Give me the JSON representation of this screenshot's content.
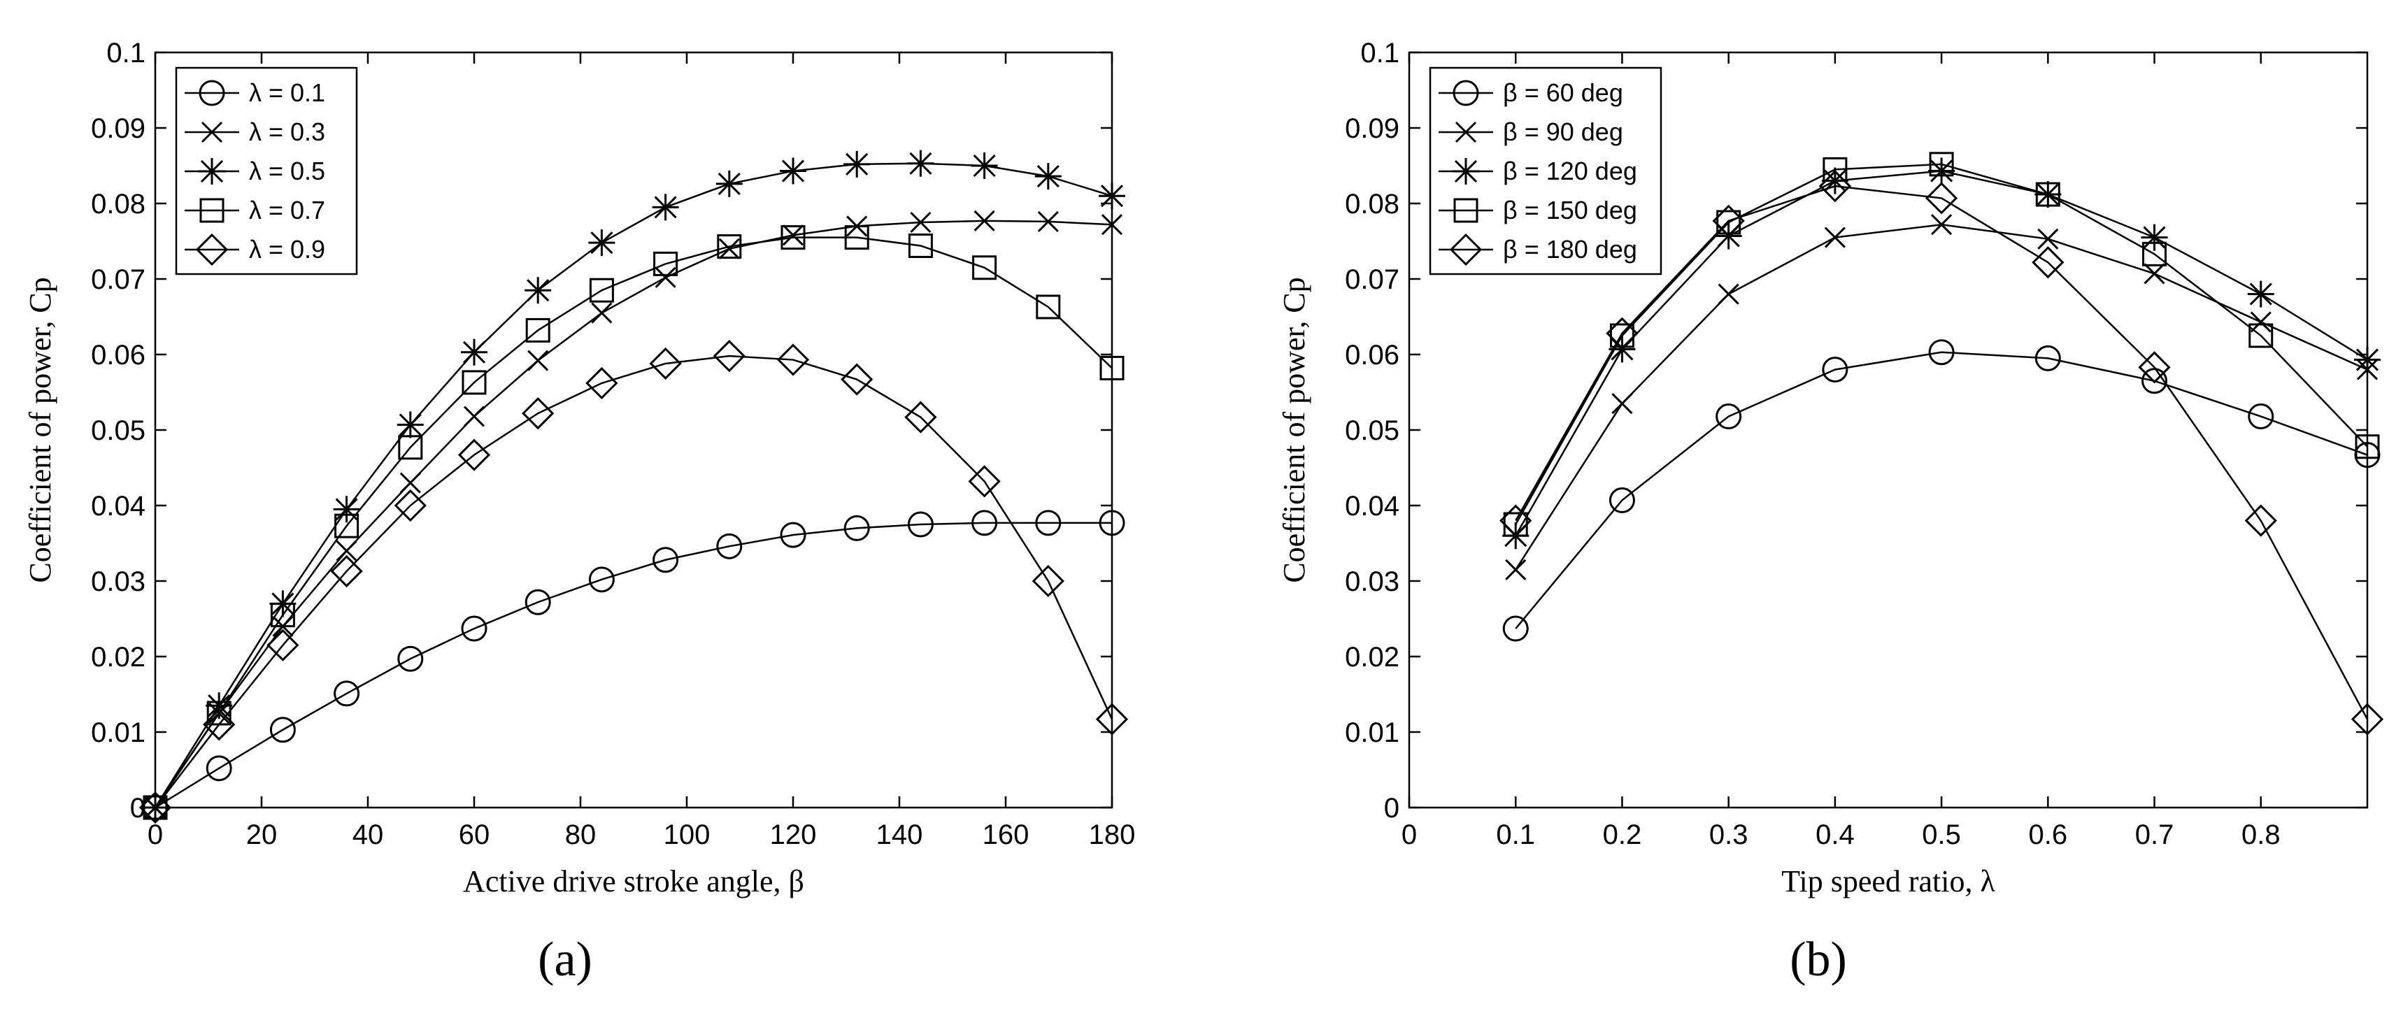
{
  "chart_data": [
    {
      "type": "line",
      "panel_label": "(a)",
      "xlabel": "Active drive stroke angle, β",
      "ylabel": "Coefficient of power, Cp",
      "xlim": [
        0,
        180
      ],
      "ylim": [
        0,
        0.1
      ],
      "xticks": [
        "0",
        "20",
        "40",
        "60",
        "80",
        "100",
        "120",
        "140",
        "160",
        "180"
      ],
      "yticks": [
        "0",
        "0.01",
        "0.02",
        "0.03",
        "0.04",
        "0.05",
        "0.06",
        "0.07",
        "0.08",
        "0.09",
        "0.1"
      ],
      "legend_position": "top-left",
      "grid": false,
      "x": [
        0,
        12,
        24,
        36,
        48,
        60,
        72,
        84,
        96,
        108,
        120,
        132,
        144,
        156,
        168,
        180
      ],
      "series": [
        {
          "name": "λ = 0.1",
          "marker": "circle",
          "values": [
            0,
            0.0052,
            0.0103,
            0.0151,
            0.0197,
            0.0237,
            0.0272,
            0.0302,
            0.0328,
            0.0346,
            0.0361,
            0.037,
            0.0375,
            0.0377,
            0.0377,
            0.0377
          ]
        },
        {
          "name": "λ = 0.3",
          "marker": "x",
          "values": [
            0,
            0.0125,
            0.024,
            0.034,
            0.043,
            0.0518,
            0.0592,
            0.0655,
            0.0702,
            0.074,
            0.0758,
            0.077,
            0.0775,
            0.0777,
            0.0776,
            0.0772
          ]
        },
        {
          "name": "λ = 0.5",
          "marker": "star",
          "values": [
            0,
            0.0135,
            0.027,
            0.0395,
            0.0507,
            0.0603,
            0.0685,
            0.0748,
            0.0795,
            0.0826,
            0.0843,
            0.0852,
            0.0853,
            0.085,
            0.0836,
            0.081
          ]
        },
        {
          "name": "λ = 0.7",
          "marker": "square",
          "values": [
            0,
            0.0125,
            0.0255,
            0.0373,
            0.0477,
            0.0563,
            0.0632,
            0.0685,
            0.072,
            0.0743,
            0.0755,
            0.0755,
            0.0744,
            0.0715,
            0.0663,
            0.0582
          ]
        },
        {
          "name": "λ = 0.9",
          "marker": "diamond",
          "values": [
            0,
            0.011,
            0.0215,
            0.0313,
            0.04,
            0.0467,
            0.0522,
            0.0562,
            0.0588,
            0.0598,
            0.0593,
            0.0567,
            0.0517,
            0.0432,
            0.03,
            0.0117
          ]
        }
      ]
    },
    {
      "type": "line",
      "panel_label": "(b)",
      "xlabel": "Tip speed ratio, λ",
      "ylabel": "Coefficient of power, Cp",
      "xlim": [
        0,
        0.9
      ],
      "ylim": [
        0,
        0.1
      ],
      "xticks": [
        "0",
        "0.1",
        "0.2",
        "0.3",
        "0.4",
        "0.5",
        "0.6",
        "0.7",
        "0.8"
      ],
      "yticks": [
        "0",
        "0.01",
        "0.02",
        "0.03",
        "0.04",
        "0.05",
        "0.06",
        "0.07",
        "0.08",
        "0.09",
        "0.1"
      ],
      "legend_position": "top-left",
      "grid": false,
      "x": [
        0.1,
        0.2,
        0.3,
        0.4,
        0.5,
        0.6,
        0.7,
        0.8,
        0.9
      ],
      "series": [
        {
          "name": "β = 60 deg",
          "marker": "circle",
          "values": [
            0.0237,
            0.0407,
            0.0518,
            0.058,
            0.0603,
            0.0595,
            0.0565,
            0.0518,
            0.0467
          ]
        },
        {
          "name": "β = 90 deg",
          "marker": "x",
          "values": [
            0.0315,
            0.0535,
            0.068,
            0.0755,
            0.0772,
            0.0753,
            0.0707,
            0.0643,
            0.058
          ]
        },
        {
          "name": "β = 120 deg",
          "marker": "star",
          "values": [
            0.036,
            0.0607,
            0.0757,
            0.083,
            0.0843,
            0.0812,
            0.0755,
            0.068,
            0.0593
          ]
        },
        {
          "name": "β = 150 deg",
          "marker": "square",
          "values": [
            0.0375,
            0.0625,
            0.0775,
            0.0845,
            0.0852,
            0.0812,
            0.0733,
            0.0625,
            0.0478
          ]
        },
        {
          "name": "β = 180 deg",
          "marker": "diamond",
          "values": [
            0.038,
            0.0628,
            0.0777,
            0.0823,
            0.0807,
            0.0722,
            0.0583,
            0.038,
            0.0117
          ]
        }
      ]
    }
  ]
}
